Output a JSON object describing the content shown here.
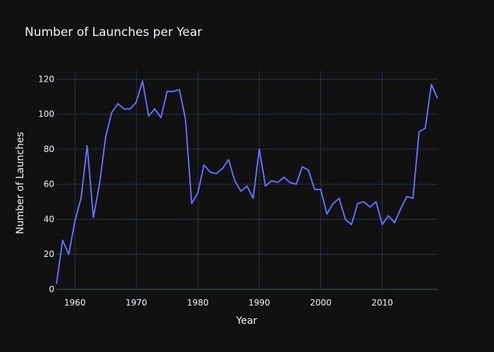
{
  "chart_data": {
    "type": "line",
    "title": "Number of Launches per Year",
    "xlabel": "Year",
    "ylabel": "Number of Launches",
    "xlim": [
      1957,
      2019
    ],
    "ylim": [
      0,
      125
    ],
    "xticks": [
      "1960",
      "1970",
      "1980",
      "1990",
      "2000",
      "2010"
    ],
    "yticks": [
      "0",
      "20",
      "40",
      "60",
      "80",
      "100",
      "120"
    ],
    "grid": true,
    "legend": "none",
    "series": [
      {
        "color": "#636efa",
        "x": [
          1957,
          1958,
          1959,
          1960,
          1961,
          1962,
          1963,
          1964,
          1965,
          1966,
          1967,
          1968,
          1969,
          1970,
          1971,
          1972,
          1973,
          1974,
          1975,
          1976,
          1977,
          1978,
          1979,
          1980,
          1981,
          1982,
          1983,
          1984,
          1985,
          1986,
          1987,
          1988,
          1989,
          1990,
          1991,
          1992,
          1993,
          1994,
          1995,
          1996,
          1997,
          1998,
          1999,
          2000,
          2001,
          2002,
          2003,
          2004,
          2005,
          2006,
          2007,
          2008,
          2009,
          2010,
          2011,
          2012,
          2013,
          2014,
          2015,
          2016,
          2017,
          2018,
          2019
        ],
        "values": [
          3,
          28,
          20,
          39,
          52,
          82,
          41,
          60,
          87,
          101,
          106,
          103,
          103,
          107,
          119,
          99,
          103,
          98,
          113,
          113,
          114,
          97,
          49,
          55,
          71,
          67,
          66,
          69,
          74,
          62,
          56,
          59,
          52,
          80,
          59,
          62,
          61,
          64,
          61,
          60,
          70,
          68,
          57,
          57,
          43,
          49,
          52,
          40,
          37,
          49,
          50,
          47,
          50,
          37,
          42,
          38,
          46,
          53,
          52,
          90,
          92,
          117,
          109
        ]
      }
    ]
  }
}
